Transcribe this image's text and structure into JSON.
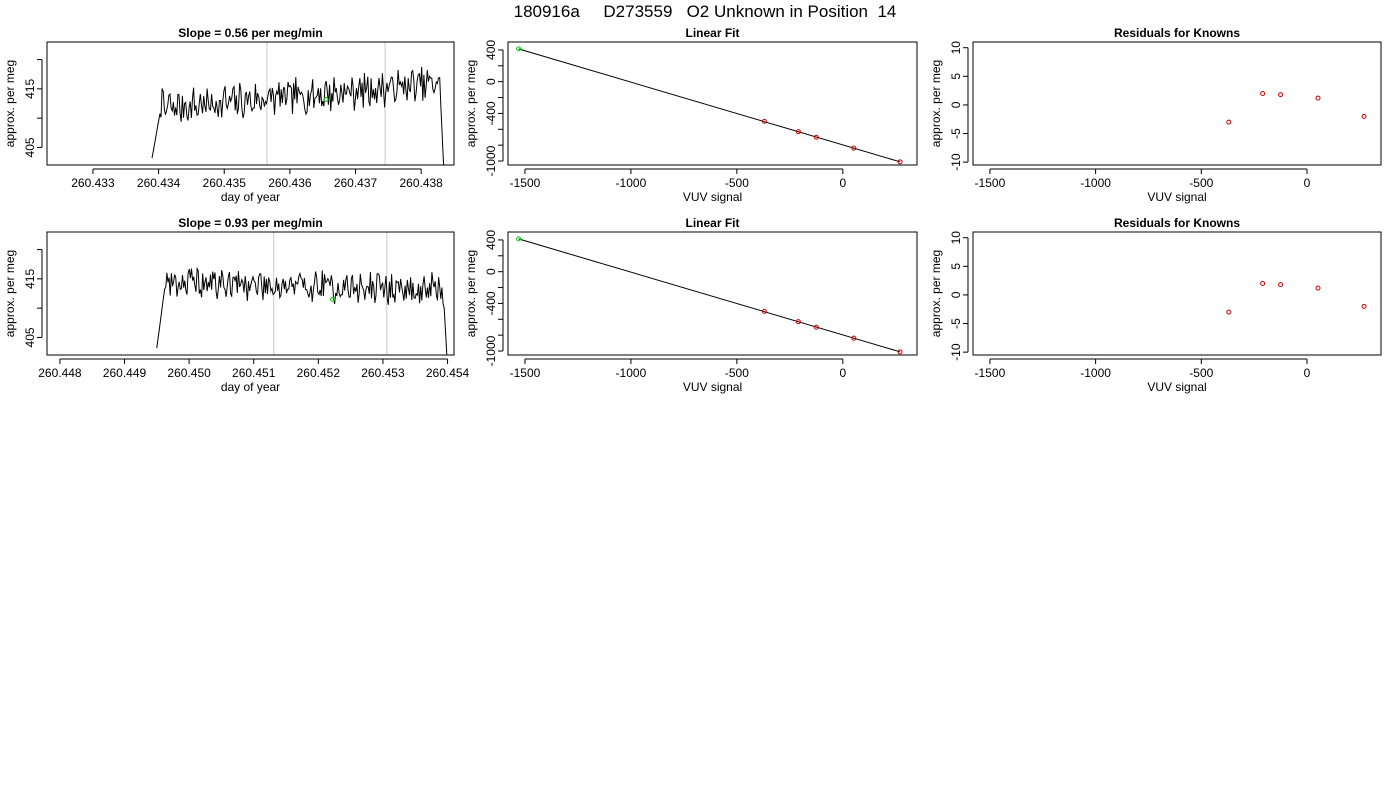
{
  "page_title": "180916a     D273559   O2 Unknown in Position  14",
  "colors": {
    "trace": "#000000",
    "vline": "#c8c8c8",
    "unknown": "#00cc00",
    "known": "#cc0000",
    "fit_line": "#000000"
  },
  "chart_data": [
    {
      "type": "line",
      "title": "Slope =  0.56  per meg/min",
      "xlabel": "day of year",
      "ylabel": "approx. per meg",
      "xlim": [
        260.4323,
        260.4385
      ],
      "ylim": [
        402,
        423
      ],
      "xticks": [
        260.433,
        260.434,
        260.435,
        260.436,
        260.437,
        260.438
      ],
      "xtick_labels": [
        "260.433",
        "260.434",
        "260.435",
        "260.436",
        "260.437",
        "260.438"
      ],
      "yticks": [
        405,
        410,
        415,
        420
      ],
      "ytick_labels": [
        "405",
        "",
        "415",
        ""
      ],
      "vlines": [
        260.43565,
        260.43745
      ],
      "marker": {
        "x": 260.43655,
        "y": 413.2
      },
      "series": [
        {
          "x_start": 260.4339,
          "x_end": 260.43835,
          "seed": 7,
          "shape": "start_low_ramp_then_noise_then_drop",
          "y_mean_early": 411.5,
          "y_mean_late": 416.0,
          "noise": 2.6
        }
      ]
    },
    {
      "type": "scatter",
      "title": "Linear Fit",
      "xlabel": "VUV signal",
      "ylabel": "approx. per meg",
      "xlim": [
        -1580,
        350
      ],
      "ylim": [
        -1050,
        500
      ],
      "xticks": [
        -1500,
        -1000,
        -500,
        0
      ],
      "xtick_labels": [
        "-1500",
        "-1000",
        "-500",
        "0"
      ],
      "yticks": [
        -1000,
        -800,
        -600,
        -400,
        -200,
        0,
        200,
        400
      ],
      "ytick_labels": [
        "-1000",
        "",
        "",
        "-400",
        "",
        "0",
        "",
        "400"
      ],
      "fit_line": [
        [
          -1530,
          413
        ],
        [
          270,
          -1010
        ]
      ],
      "unknown_points": [
        {
          "x": -1530,
          "y": 413
        }
      ],
      "known_points": [
        {
          "x": -370,
          "y": -500
        },
        {
          "x": -210,
          "y": -630
        },
        {
          "x": -125,
          "y": -700
        },
        {
          "x": 52,
          "y": -838
        },
        {
          "x": 270,
          "y": -1010
        }
      ]
    },
    {
      "type": "scatter",
      "title": "Residuals for Knowns",
      "xlabel": "VUV signal",
      "ylabel": "approx. per meg",
      "xlim": [
        -1580,
        350
      ],
      "ylim": [
        -10.5,
        11
      ],
      "xticks": [
        -1500,
        -1000,
        -500,
        0
      ],
      "xtick_labels": [
        "-1500",
        "-1000",
        "-500",
        "0"
      ],
      "yticks": [
        -10,
        -5,
        0,
        5,
        10
      ],
      "ytick_labels": [
        "-10",
        "-5",
        "0",
        "5",
        "10"
      ],
      "known_points": [
        {
          "x": -370,
          "y": -3.0
        },
        {
          "x": -210,
          "y": 2.0
        },
        {
          "x": -125,
          "y": 1.8
        },
        {
          "x": 52,
          "y": 1.2
        },
        {
          "x": 270,
          "y": -2.0
        }
      ]
    },
    {
      "type": "line",
      "title": "Slope =  0.93  per meg/min",
      "xlabel": "day of year",
      "ylabel": "approx. per meg",
      "xlim": [
        260.4478,
        260.4541
      ],
      "ylim": [
        402,
        423
      ],
      "xticks": [
        260.448,
        260.449,
        260.45,
        260.451,
        260.452,
        260.453,
        260.454
      ],
      "xtick_labels": [
        "260.448",
        "260.449",
        "260.450",
        "260.451",
        "260.452",
        "260.453",
        "260.454"
      ],
      "yticks": [
        405,
        410,
        415,
        420
      ],
      "ytick_labels": [
        "405",
        "",
        "415",
        ""
      ],
      "vlines": [
        260.45131,
        260.45306
      ],
      "marker": {
        "x": 260.45222,
        "y": 411.5
      },
      "series": [
        {
          "x_start": 260.4495,
          "x_end": 260.454,
          "seed": 19,
          "shape": "start_low_ramp_then_noise_then_drop",
          "y_mean_early": 414.5,
          "y_mean_late": 413.0,
          "noise": 2.3
        }
      ]
    },
    {
      "type": "scatter",
      "title": "Linear Fit",
      "xlabel": "VUV signal",
      "ylabel": "approx. per meg",
      "xlim": [
        -1580,
        350
      ],
      "ylim": [
        -1050,
        500
      ],
      "xticks": [
        -1500,
        -1000,
        -500,
        0
      ],
      "xtick_labels": [
        "-1500",
        "-1000",
        "-500",
        "0"
      ],
      "yticks": [
        -1000,
        -800,
        -600,
        -400,
        -200,
        0,
        200,
        400
      ],
      "ytick_labels": [
        "-1000",
        "",
        "",
        "-400",
        "",
        "0",
        "",
        "400"
      ],
      "fit_line": [
        [
          -1530,
          413
        ],
        [
          270,
          -1010
        ]
      ],
      "unknown_points": [
        {
          "x": -1530,
          "y": 413
        }
      ],
      "known_points": [
        {
          "x": -370,
          "y": -500
        },
        {
          "x": -210,
          "y": -630
        },
        {
          "x": -125,
          "y": -700
        },
        {
          "x": 52,
          "y": -838
        },
        {
          "x": 270,
          "y": -1010
        }
      ]
    },
    {
      "type": "scatter",
      "title": "Residuals for Knowns",
      "xlabel": "VUV signal",
      "ylabel": "approx. per meg",
      "xlim": [
        -1580,
        350
      ],
      "ylim": [
        -10.5,
        11
      ],
      "xticks": [
        -1500,
        -1000,
        -500,
        0
      ],
      "xtick_labels": [
        "-1500",
        "-1000",
        "-500",
        "0"
      ],
      "yticks": [
        -10,
        -5,
        0,
        5,
        10
      ],
      "ytick_labels": [
        "-10",
        "-5",
        "0",
        "5",
        "10"
      ],
      "known_points": [
        {
          "x": -370,
          "y": -3.0
        },
        {
          "x": -210,
          "y": 2.0
        },
        {
          "x": -125,
          "y": 1.8
        },
        {
          "x": 52,
          "y": 1.2
        },
        {
          "x": 270,
          "y": -2.0
        }
      ]
    }
  ]
}
